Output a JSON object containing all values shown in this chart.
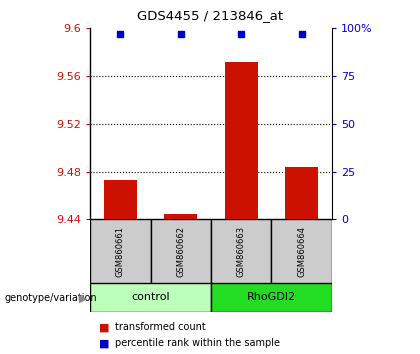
{
  "title": "GDS4455 / 213846_at",
  "samples": [
    "GSM860661",
    "GSM860662",
    "GSM860663",
    "GSM860664"
  ],
  "group_labels": [
    "control",
    "RhoGDI2"
  ],
  "transformed_counts": [
    9.473,
    9.445,
    9.572,
    9.484
  ],
  "percentile_ranks": [
    97,
    97,
    97,
    97
  ],
  "ymin": 9.44,
  "ymax": 9.6,
  "yticks": [
    9.44,
    9.48,
    9.52,
    9.56,
    9.6
  ],
  "ytick_labels": [
    "9.44",
    "9.48",
    "9.52",
    "9.56",
    "9.6"
  ],
  "right_yticks": [
    0,
    25,
    50,
    75,
    100
  ],
  "right_ytick_labels": [
    "0",
    "25",
    "50",
    "75",
    "100%"
  ],
  "bar_color": "#CC1100",
  "dot_color": "#0000CC",
  "bar_width": 0.55,
  "legend_red_label": "transformed count",
  "legend_blue_label": "percentile rank within the sample",
  "genotype_label": "genotype/variation",
  "left_tick_color": "#CC1100",
  "right_tick_color": "#0000CC",
  "sample_box_color": "#CCCCCC",
  "control_color": "#BBFFBB",
  "rhodgi2_color": "#22DD22",
  "grid_color": "#000000"
}
